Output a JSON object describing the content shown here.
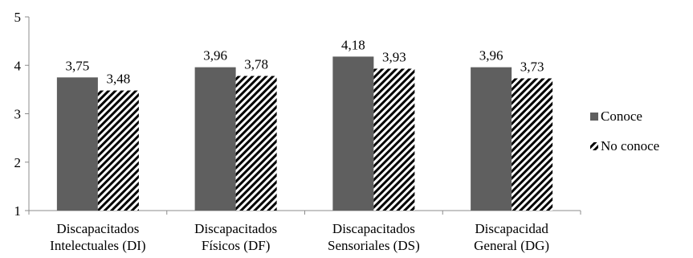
{
  "chart_data": {
    "type": "bar",
    "categories": [
      [
        "Discapacitados",
        "Intelectuales (DI)"
      ],
      [
        "Discapacitados",
        "Físicos (DF)"
      ],
      [
        "Discapacitados",
        "Sensoriales (DS)"
      ],
      [
        "Discapacidad",
        "General (DG)"
      ]
    ],
    "series": [
      {
        "name": "Conoce",
        "values": [
          3.75,
          3.96,
          4.18,
          3.96
        ],
        "labels": [
          "3,75",
          "3,96",
          "4,18",
          "3,96"
        ],
        "color": "#5f5f5f",
        "pattern": "solid"
      },
      {
        "name": "No conoce",
        "values": [
          3.48,
          3.78,
          3.93,
          3.73
        ],
        "labels": [
          "3,48",
          "3,78",
          "3,93",
          "3,73"
        ],
        "color": "#000000",
        "pattern": "diagonal-stripes"
      }
    ],
    "ylim": [
      1,
      5
    ],
    "yticks": [
      1,
      2,
      3,
      4,
      5
    ],
    "grid": false,
    "legend_position": "right",
    "title": "",
    "xlabel": "",
    "ylabel": ""
  }
}
